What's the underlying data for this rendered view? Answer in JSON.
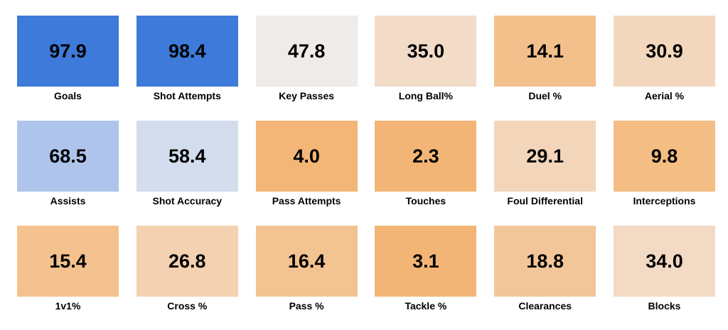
{
  "chart_data": {
    "type": "heatmap",
    "title": "",
    "tiles": [
      {
        "label": "Goals",
        "value": "97.9",
        "color": "#3d7ad9"
      },
      {
        "label": "Shot Attempts",
        "value": "98.4",
        "color": "#3d7ad9"
      },
      {
        "label": "Key Passes",
        "value": "47.8",
        "color": "#efebe8"
      },
      {
        "label": "Long Ball%",
        "value": "35.0",
        "color": "#f2dbc7"
      },
      {
        "label": "Duel %",
        "value": "14.1",
        "color": "#f3c08c"
      },
      {
        "label": "Aerial %",
        "value": "30.9",
        "color": "#f3d7bd"
      },
      {
        "label": "Assists",
        "value": "68.5",
        "color": "#aec4ea"
      },
      {
        "label": "Shot Accuracy",
        "value": "58.4",
        "color": "#d3ddee"
      },
      {
        "label": "Pass Attempts",
        "value": "4.0",
        "color": "#f3b677"
      },
      {
        "label": "Touches",
        "value": "2.3",
        "color": "#f3b576"
      },
      {
        "label": "Foul Differential",
        "value": "29.1",
        "color": "#f3d6ba"
      },
      {
        "label": "Interceptions",
        "value": "9.8",
        "color": "#f3bd84"
      },
      {
        "label": "1v1%",
        "value": "15.4",
        "color": "#f3c28f"
      },
      {
        "label": "Cross %",
        "value": "26.8",
        "color": "#f3d1b1"
      },
      {
        "label": "Pass %",
        "value": "16.4",
        "color": "#f3c391"
      },
      {
        "label": "Tackle %",
        "value": "3.1",
        "color": "#f3b576"
      },
      {
        "label": "Clearances",
        "value": "18.8",
        "color": "#f3c69a"
      },
      {
        "label": "Blocks",
        "value": "34.0",
        "color": "#f2dac4"
      }
    ]
  }
}
